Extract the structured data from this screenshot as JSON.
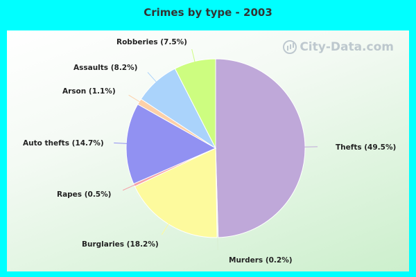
{
  "chart_data": {
    "type": "pie",
    "title": "Crimes by type - 2003",
    "slices": [
      {
        "label": "Thefts (49.5%)",
        "value": 49.5,
        "color": "#bfa8d9"
      },
      {
        "label": "Murders (0.2%)",
        "value": 0.2,
        "color": "#d8eed2"
      },
      {
        "label": "Burglaries (18.2%)",
        "value": 18.2,
        "color": "#fdfa9d"
      },
      {
        "label": "Rapes (0.5%)",
        "value": 0.5,
        "color": "#f5a3a8"
      },
      {
        "label": "Auto thefts (14.7%)",
        "value": 14.7,
        "color": "#9191f2"
      },
      {
        "label": "Arson (1.1%)",
        "value": 1.1,
        "color": "#fdd0a8"
      },
      {
        "label": "Assaults (8.2%)",
        "value": 8.2,
        "color": "#aad3fb"
      },
      {
        "label": "Robberies (7.5%)",
        "value": 7.5,
        "color": "#cdfd80"
      }
    ]
  },
  "watermark": {
    "text": "City-Data.com",
    "icon": "city-data-logo-icon"
  }
}
